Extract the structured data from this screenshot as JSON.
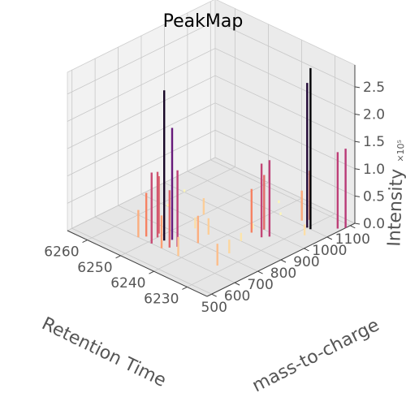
{
  "chart_data": {
    "type": "bar3d",
    "title": "PeakMap",
    "xlabel": "Retention Time",
    "ylabel": "mass-to-charge",
    "zlabel": "Intensity",
    "z_offset_label": "×10⁵",
    "x_ticks": [
      "6230",
      "6240",
      "6250",
      "6260"
    ],
    "y_ticks": [
      "500",
      "600",
      "700",
      "800",
      "900",
      "1000",
      "1100"
    ],
    "z_ticks": [
      "0.0",
      "0.5",
      "1.0",
      "1.5",
      "2.0",
      "2.5"
    ],
    "xlim": [
      6224,
      6266
    ],
    "ylim": [
      480,
      1120
    ],
    "zlim": [
      0,
      2.9
    ],
    "colormap": [
      "#fcfdbf",
      "#fc8961",
      "#b73779",
      "#51127c",
      "#000004"
    ],
    "grid": true,
    "peaks": [
      {
        "rt": 6232,
        "mz": 640,
        "intensity": 0.4
      },
      {
        "rt": 6234,
        "mz": 720,
        "intensity": 0.25
      },
      {
        "rt": 6236,
        "mz": 800,
        "intensity": 0.15
      },
      {
        "rt": 6238,
        "mz": 880,
        "intensity": 0.1
      },
      {
        "rt": 6241,
        "mz": 600,
        "intensity": 0.35
      },
      {
        "rt": 6242,
        "mz": 700,
        "intensity": 0.5
      },
      {
        "rt": 6243,
        "mz": 760,
        "intensity": 0.3
      },
      {
        "rt": 6244,
        "mz": 640,
        "intensity": 1.4
      },
      {
        "rt": 6245,
        "mz": 620,
        "intensity": 1.05
      },
      {
        "rt": 6246,
        "mz": 600,
        "intensity": 0.6
      },
      {
        "rt": 6247,
        "mz": 660,
        "intensity": 2.05
      },
      {
        "rt": 6248,
        "mz": 640,
        "intensity": 2.75
      },
      {
        "rt": 6249,
        "mz": 600,
        "intensity": 1.3
      },
      {
        "rt": 6250,
        "mz": 640,
        "intensity": 1.2
      },
      {
        "rt": 6251,
        "mz": 660,
        "intensity": 1.05
      },
      {
        "rt": 6252,
        "mz": 620,
        "intensity": 0.8
      },
      {
        "rt": 6253,
        "mz": 600,
        "intensity": 0.5
      },
      {
        "rt": 6247,
        "mz": 760,
        "intensity": 0.2
      },
      {
        "rt": 6250,
        "mz": 840,
        "intensity": 0.3
      },
      {
        "rt": 6233,
        "mz": 880,
        "intensity": 1.4
      },
      {
        "rt": 6234,
        "mz": 860,
        "intensity": 1.35
      },
      {
        "rt": 6236,
        "mz": 900,
        "intensity": 1.0
      },
      {
        "rt": 6237,
        "mz": 860,
        "intensity": 0.8
      },
      {
        "rt": 6229,
        "mz": 1000,
        "intensity": 2.95
      },
      {
        "rt": 6230,
        "mz": 1000,
        "intensity": 2.65
      },
      {
        "rt": 6232,
        "mz": 1040,
        "intensity": 0.9
      },
      {
        "rt": 6233,
        "mz": 1020,
        "intensity": 0.55
      },
      {
        "rt": 6224,
        "mz": 1080,
        "intensity": 1.45
      },
      {
        "rt": 6225,
        "mz": 1060,
        "intensity": 1.4
      },
      {
        "rt": 6228,
        "mz": 960,
        "intensity": 0.2
      },
      {
        "rt": 6256,
        "mz": 700,
        "intensity": 0.05
      },
      {
        "rt": 6258,
        "mz": 800,
        "intensity": 0.05
      },
      {
        "rt": 6260,
        "mz": 900,
        "intensity": 0.05
      },
      {
        "rt": 6238,
        "mz": 1000,
        "intensity": 0.05
      },
      {
        "rt": 6242,
        "mz": 1050,
        "intensity": 0.05
      }
    ]
  }
}
